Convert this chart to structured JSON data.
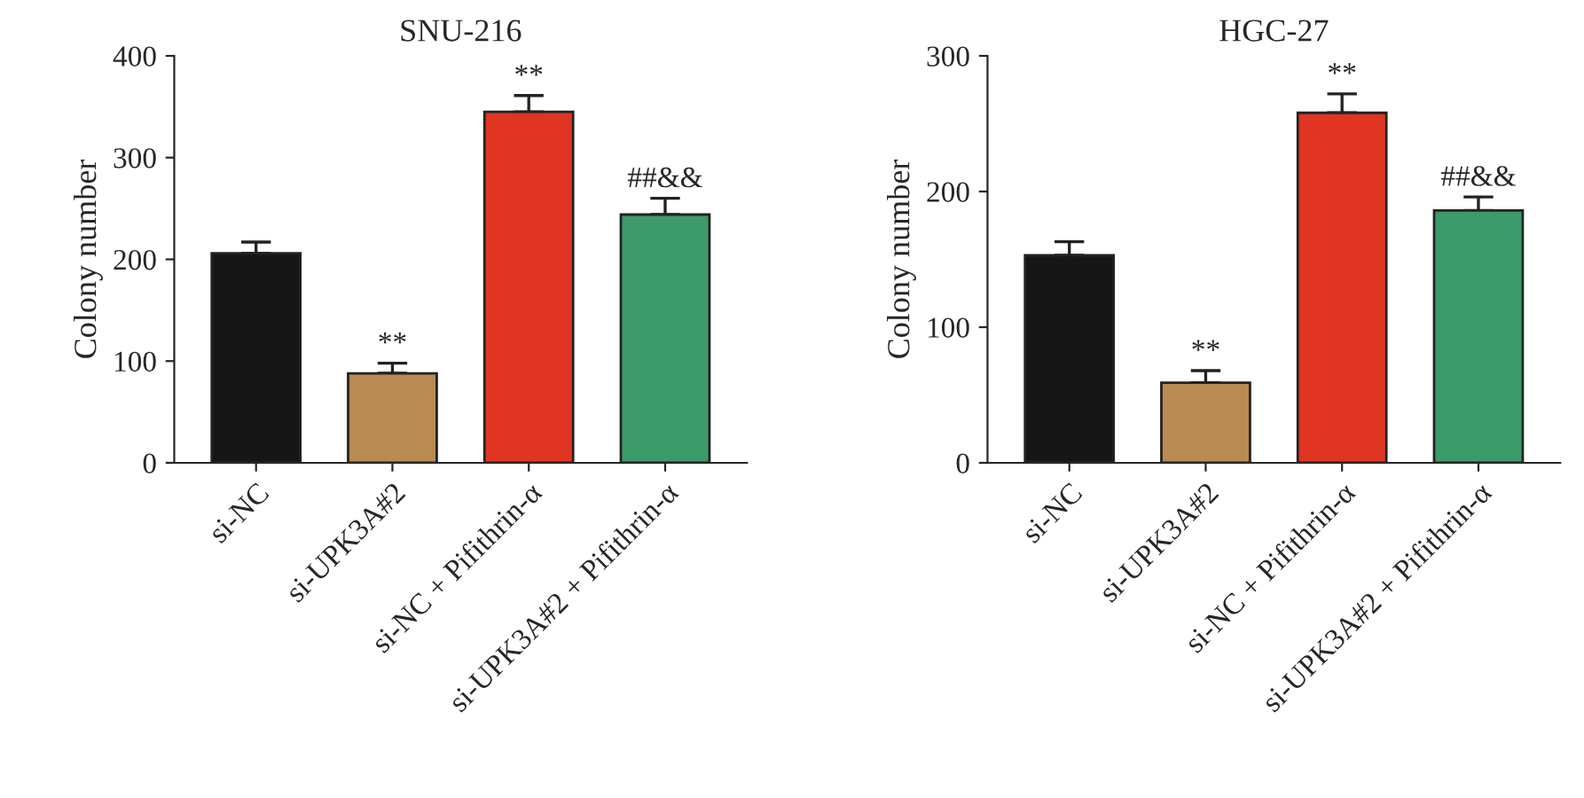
{
  "chart_data": [
    {
      "type": "bar",
      "title": "SNU-216",
      "ylabel": "Colony number",
      "categories": [
        "si-NC",
        "si-UPK3A#2",
        "si-NC + Pifithrin-α",
        "si-UPK3A#2 + Pifithrin-α"
      ],
      "values": [
        206,
        88,
        345,
        244
      ],
      "errors": [
        11,
        10,
        16,
        16
      ],
      "colors": [
        "#161616",
        "#b98a52",
        "#df3522",
        "#3d9a6a"
      ],
      "ylim": [
        0,
        400
      ],
      "yticks": [
        0,
        100,
        200,
        300,
        400
      ],
      "grid": false,
      "legend": false,
      "annotations": [
        {
          "text": "**",
          "x": "si-UPK3A#2",
          "y": 98
        },
        {
          "text": "**",
          "x": "si-NC + Pifithrin-α",
          "y": 361
        },
        {
          "text": "##&&",
          "x": "si-UPK3A#2 + Pifithrin-α",
          "y": 260
        }
      ]
    },
    {
      "type": "bar",
      "title": "HGC-27",
      "ylabel": "Colony number",
      "categories": [
        "si-NC",
        "si-UPK3A#2",
        "si-NC + Pifithrin-α",
        "si-UPK3A#2 + Pifithrin-α"
      ],
      "values": [
        153,
        59,
        258,
        186
      ],
      "errors": [
        10,
        9,
        14,
        10
      ],
      "colors": [
        "#161616",
        "#b98a52",
        "#df3522",
        "#3d9a6a"
      ],
      "ylim": [
        0,
        300
      ],
      "yticks": [
        0,
        100,
        200,
        300
      ],
      "grid": false,
      "legend": false,
      "annotations": [
        {
          "text": "**",
          "x": "si-UPK3A#2",
          "y": 68
        },
        {
          "text": "**",
          "x": "si-NC + Pifithrin-α",
          "y": 272
        },
        {
          "text": "##&&",
          "x": "si-UPK3A#2 + Pifithrin-α",
          "y": 196
        }
      ]
    }
  ]
}
